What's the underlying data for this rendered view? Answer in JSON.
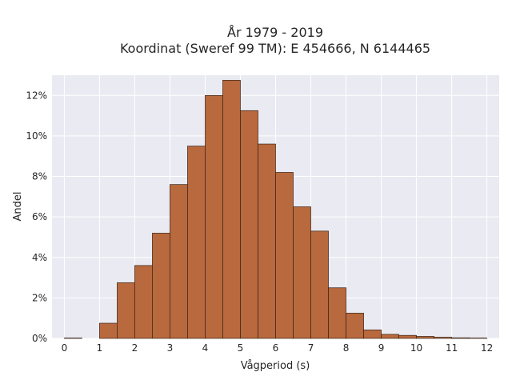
{
  "chart_data": {
    "type": "bar",
    "title": "År 1979 - 2019",
    "subtitle": "Koordinat (Sweref 99 TM): E 454666, N 6144465",
    "xlabel": "Vågperiod (s)",
    "ylabel": "Andel",
    "xlim": [
      -0.35,
      12.35
    ],
    "ylim": [
      0,
      13.0
    ],
    "x_ticks": [
      0,
      1,
      2,
      3,
      4,
      5,
      6,
      7,
      8,
      9,
      10,
      11,
      12
    ],
    "y_ticks": [
      0,
      2,
      4,
      6,
      8,
      10,
      12
    ],
    "y_tick_labels": [
      "0%",
      "2%",
      "4%",
      "6%",
      "8%",
      "10%",
      "12%"
    ],
    "bin_width": 0.5,
    "bins": [
      {
        "start": 0.0,
        "value": 0.02
      },
      {
        "start": 1.0,
        "value": 0.75
      },
      {
        "start": 1.5,
        "value": 2.75
      },
      {
        "start": 2.0,
        "value": 3.6
      },
      {
        "start": 2.5,
        "value": 5.2
      },
      {
        "start": 3.0,
        "value": 7.6
      },
      {
        "start": 3.5,
        "value": 9.5
      },
      {
        "start": 4.0,
        "value": 12.0
      },
      {
        "start": 4.5,
        "value": 12.75
      },
      {
        "start": 5.0,
        "value": 11.25
      },
      {
        "start": 5.5,
        "value": 9.6
      },
      {
        "start": 6.0,
        "value": 8.2
      },
      {
        "start": 6.5,
        "value": 6.5
      },
      {
        "start": 7.0,
        "value": 5.3
      },
      {
        "start": 7.5,
        "value": 2.5
      },
      {
        "start": 8.0,
        "value": 1.25
      },
      {
        "start": 8.5,
        "value": 0.42
      },
      {
        "start": 9.0,
        "value": 0.2
      },
      {
        "start": 9.5,
        "value": 0.15
      },
      {
        "start": 10.0,
        "value": 0.1
      },
      {
        "start": 10.5,
        "value": 0.06
      },
      {
        "start": 11.0,
        "value": 0.03
      },
      {
        "start": 11.5,
        "value": 0.02
      }
    ],
    "grid": true,
    "colors": {
      "bar_fill": "#b8693d",
      "bar_edge": "#3a2418",
      "plot_background": "#eaeaf2",
      "grid": "#ffffff"
    }
  }
}
